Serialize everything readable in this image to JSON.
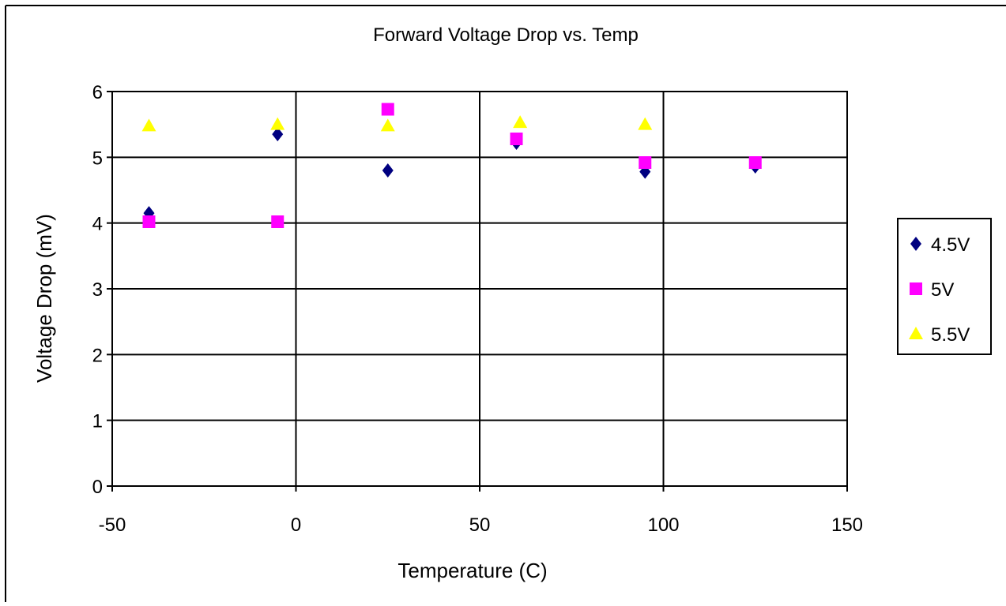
{
  "chart_data": {
    "type": "scatter",
    "title": "Forward Voltage Drop vs. Temp",
    "xlabel": "Temperature (C)",
    "ylabel": "Voltage Drop (mV)",
    "xlim": [
      -50,
      150
    ],
    "ylim": [
      0,
      6
    ],
    "x_ticks": [
      -50,
      0,
      50,
      100,
      150
    ],
    "y_ticks": [
      0,
      1,
      2,
      3,
      4,
      5,
      6
    ],
    "grid": true,
    "legend_position": "right",
    "series": [
      {
        "name": "4.5V",
        "marker": "diamond",
        "color": "#000080",
        "points": [
          [
            -40,
            4.15
          ],
          [
            -5,
            5.35
          ],
          [
            25,
            4.8
          ],
          [
            60,
            5.22
          ],
          [
            95,
            4.78
          ],
          [
            125,
            4.86
          ]
        ]
      },
      {
        "name": "5V",
        "marker": "square",
        "color": "#ff00ff",
        "points": [
          [
            -40,
            4.02
          ],
          [
            -5,
            4.02
          ],
          [
            25,
            5.73
          ],
          [
            60,
            5.28
          ],
          [
            95,
            4.92
          ],
          [
            125,
            4.92
          ]
        ]
      },
      {
        "name": "5.5V",
        "marker": "triangle",
        "color": "#ffff00",
        "points": [
          [
            -40,
            5.48
          ],
          [
            -5,
            5.5
          ],
          [
            25,
            5.48
          ],
          [
            61,
            5.53
          ],
          [
            95,
            5.5
          ]
        ]
      }
    ]
  }
}
